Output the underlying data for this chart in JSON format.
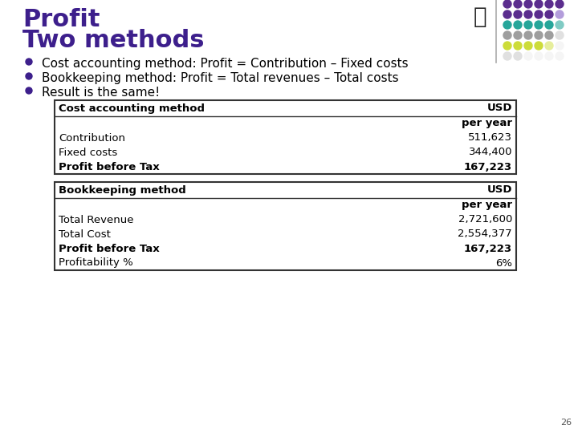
{
  "title_line1": "Profit",
  "title_line2": "Two methods",
  "title_color": "#3d1f8c",
  "title_fontsize": 22,
  "bg_color": "#ffffff",
  "bullets": [
    "Cost accounting method: Profit = Contribution – Fixed costs",
    "Bookkeeping method: Profit = Total revenues – Total costs",
    "Result is the same!"
  ],
  "bullet_fontsize": 11,
  "bullet_color": "#000000",
  "bullet_dot_color": "#3d1f8c",
  "table1_header_left": "Cost accounting method",
  "table1_header_right": "USD",
  "table1_subheader_right": "per year",
  "table1_rows": [
    [
      "Contribution",
      "511,623",
      false
    ],
    [
      "Fixed costs",
      "344,400",
      false
    ],
    [
      "Profit before Tax",
      "167,223",
      true
    ]
  ],
  "table2_header_left": "Bookkeeping method",
  "table2_header_right": "USD",
  "table2_subheader_right": "per year",
  "table2_rows": [
    [
      "Total Revenue",
      "2,721,600",
      false
    ],
    [
      "Total Cost",
      "2,554,377",
      false
    ],
    [
      "Profit before Tax",
      "167,223",
      true
    ],
    [
      "Profitability %",
      "6%",
      false
    ]
  ],
  "table_fontsize": 9.5,
  "page_number": "26",
  "dot_grid": [
    [
      "#5b2d8e",
      "#5b2d8e",
      "#5b2d8e",
      "#5b2d8e",
      "#5b2d8e",
      "#5b2d8e"
    ],
    [
      "#5b2d8e",
      "#5b2d8e",
      "#5b2d8e",
      "#5b2d8e",
      "#5b2d8e",
      "#b39ddb"
    ],
    [
      "#26a69a",
      "#26a69a",
      "#26a69a",
      "#26a69a",
      "#26a69a",
      "#80cbc4"
    ],
    [
      "#9e9e9e",
      "#9e9e9e",
      "#9e9e9e",
      "#9e9e9e",
      "#9e9e9e",
      "#e0e0e0"
    ],
    [
      "#cddc39",
      "#cddc39",
      "#cddc39",
      "#cddc39",
      "#e6ee9c",
      "#f5f5f5"
    ],
    [
      "#e0e0e0",
      "#e0e0e0",
      "#f5f5f5",
      "#f5f5f5",
      "#f5f5f5",
      "#f5f5f5"
    ]
  ]
}
